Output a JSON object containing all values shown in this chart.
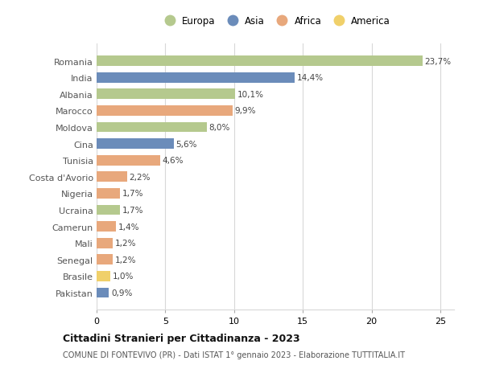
{
  "countries": [
    "Romania",
    "India",
    "Albania",
    "Marocco",
    "Moldova",
    "Cina",
    "Tunisia",
    "Costa d'Avorio",
    "Nigeria",
    "Ucraina",
    "Camerun",
    "Mali",
    "Senegal",
    "Brasile",
    "Pakistan"
  ],
  "values": [
    23.7,
    14.4,
    10.1,
    9.9,
    8.0,
    5.6,
    4.6,
    2.2,
    1.7,
    1.7,
    1.4,
    1.2,
    1.2,
    1.0,
    0.9
  ],
  "labels": [
    "23,7%",
    "14,4%",
    "10,1%",
    "9,9%",
    "8,0%",
    "5,6%",
    "4,6%",
    "2,2%",
    "1,7%",
    "1,7%",
    "1,4%",
    "1,2%",
    "1,2%",
    "1,0%",
    "0,9%"
  ],
  "continents": [
    "Europa",
    "Asia",
    "Europa",
    "Africa",
    "Europa",
    "Asia",
    "Africa",
    "Africa",
    "Africa",
    "Europa",
    "Africa",
    "Africa",
    "Africa",
    "America",
    "Asia"
  ],
  "continent_colors": {
    "Europa": "#b5c98e",
    "Asia": "#6b8cba",
    "Africa": "#e8a87c",
    "America": "#f0d06a"
  },
  "legend_order": [
    "Europa",
    "Asia",
    "Africa",
    "America"
  ],
  "title": "Cittadini Stranieri per Cittadinanza - 2023",
  "subtitle": "COMUNE DI FONTEVIVO (PR) - Dati ISTAT 1° gennaio 2023 - Elaborazione TUTTITALIA.IT",
  "xlim": [
    0,
    26
  ],
  "xticks": [
    0,
    5,
    10,
    15,
    20,
    25
  ],
  "background_color": "#ffffff",
  "grid_color": "#d8d8d8",
  "bar_height": 0.62
}
